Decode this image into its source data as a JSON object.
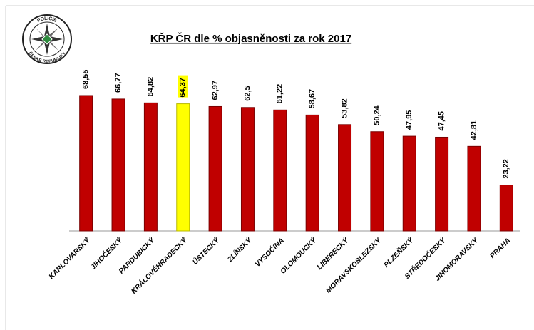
{
  "logo": {
    "top": "POLICIE",
    "bottom": "ČESKÉ REPUBLIKY"
  },
  "chart_data": {
    "type": "bar",
    "title": "KŘP ČR dle  % objasněnosti za rok 2017",
    "categories": [
      "KARLOVARSKÝ",
      "JIHOČESKÝ",
      "PARDUBICKÝ",
      "KRÁLOVÉHRADECKÝ",
      "ÚSTECKÝ",
      "ZLÍNSKÝ",
      "VYSOČINA",
      "OLOMOUCKÝ",
      "LIBERECKÝ",
      "MORAVSKOSLEZSKÝ",
      "PLZEŇSKÝ",
      "STŘEDOČESKÝ",
      "JIHOMORAVSKÝ",
      "PRAHA"
    ],
    "values": [
      68.55,
      66.77,
      64.82,
      64.37,
      62.97,
      62.5,
      61.22,
      58.67,
      53.82,
      50.24,
      47.95,
      47.45,
      42.81,
      23.22
    ],
    "value_labels": [
      "68,55",
      "66,77",
      "64,82",
      "64,37",
      "62,97",
      "62,5",
      "61,22",
      "58,67",
      "53,82",
      "50,24",
      "47,95",
      "47,45",
      "42,81",
      "23,22"
    ],
    "colors": [
      "#c00000",
      "#c00000",
      "#c00000",
      "#ffff00",
      "#c00000",
      "#c00000",
      "#c00000",
      "#c00000",
      "#c00000",
      "#c00000",
      "#c00000",
      "#c00000",
      "#c00000",
      "#c00000"
    ]
  }
}
